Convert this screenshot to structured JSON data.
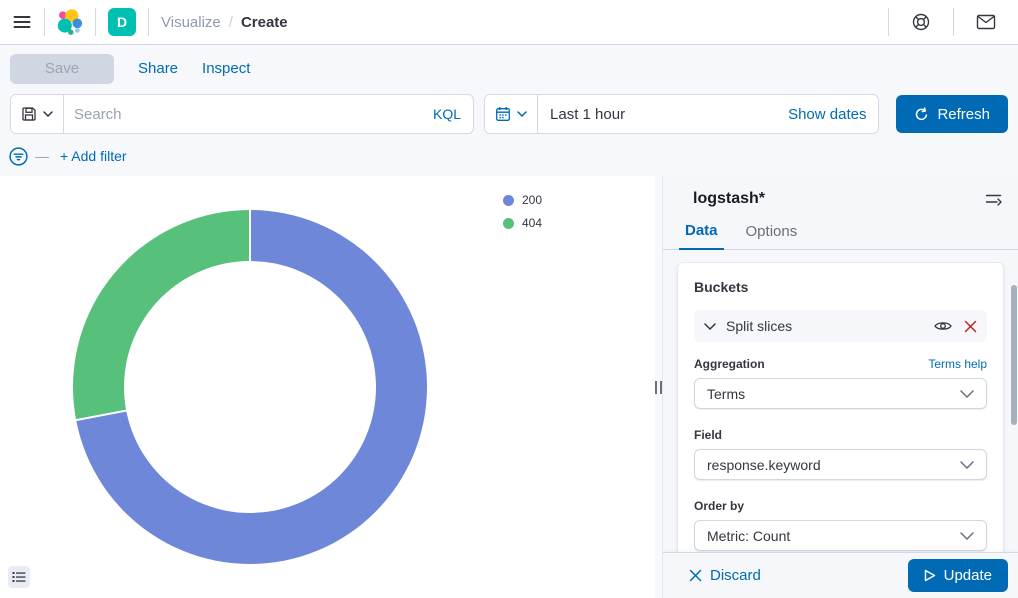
{
  "header": {
    "breadcrumbs": [
      "Visualize",
      "Create"
    ],
    "breadcrumb_separator": "/",
    "space_initial": "D"
  },
  "toolbar": {
    "save_label": "Save",
    "share_label": "Share",
    "inspect_label": "Inspect"
  },
  "query_bar": {
    "search_placeholder": "Search",
    "kql_label": "KQL",
    "time_range": "Last 1 hour",
    "show_dates_label": "Show dates",
    "refresh_label": "Refresh"
  },
  "filter_bar": {
    "add_filter_label": "+ Add filter"
  },
  "chart_data": {
    "type": "pie",
    "subtype": "donut",
    "categories": [
      "200",
      "404"
    ],
    "values": [
      72,
      28
    ],
    "values_unit": "percent-of-ring (estimated from arc angles, no labels shown)",
    "colors": [
      "#6F87D8",
      "#57C17B"
    ],
    "legend_position": "right",
    "start_angle_deg": 0,
    "title": ""
  },
  "side_panel": {
    "index_pattern": "logstash*",
    "tabs": [
      {
        "label": "Data",
        "active": true
      },
      {
        "label": "Options",
        "active": false
      }
    ],
    "buckets": {
      "title": "Buckets",
      "bucket_label": "Split slices",
      "aggregation_label": "Aggregation",
      "aggregation_value": "Terms",
      "aggregation_help": "Terms help",
      "field_label": "Field",
      "field_value": "response.keyword",
      "order_by_label": "Order by",
      "order_by_value": "Metric: Count"
    },
    "footer": {
      "discard_label": "Discard",
      "update_label": "Update"
    }
  },
  "colors": {
    "primary": "#006BB4",
    "text": "#343741",
    "subdued": "#69707D",
    "border": "#D3DAE6",
    "danger": "#BD271E",
    "badge_teal": "#00BFB3",
    "panel_bg": "#F5F7FA"
  }
}
